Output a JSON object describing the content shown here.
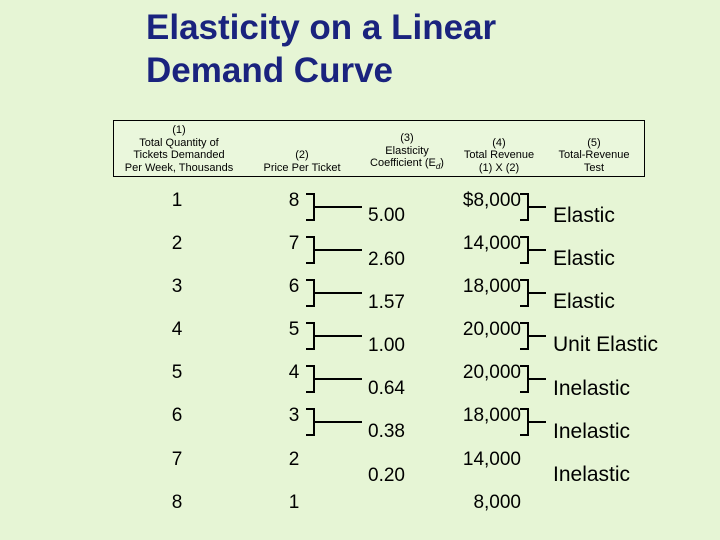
{
  "title": {
    "line1": "Elasticity on a Linear",
    "line2": "Demand Curve"
  },
  "headers": {
    "col1": [
      "(1)",
      "Total Quantity of",
      "Tickets Demanded",
      "Per Week, Thousands"
    ],
    "col2": [
      "(2)",
      "Price Per Ticket"
    ],
    "col3_num": "(3)",
    "col3_l1": "Elasticity",
    "col3_l2_prefix": "Coefficient (E",
    "col3_sub": "d",
    "col3_suffix": ")",
    "col4": [
      "(4)",
      "Total Revenue",
      "(1) X (2)"
    ],
    "col5": [
      "(5)",
      "Total-Revenue",
      "Test"
    ]
  },
  "quantity": [
    "1",
    "2",
    "3",
    "4",
    "5",
    "6",
    "7",
    "8"
  ],
  "price": [
    "8",
    "7",
    "6",
    "5",
    "4",
    "3",
    "2",
    "1"
  ],
  "elasticity_coefficient": [
    "5.00",
    "2.60",
    "1.57",
    "1.00",
    "0.64",
    "0.38",
    "0.20"
  ],
  "total_revenue": [
    "$8,000",
    "14,000",
    "18,000",
    "20,000",
    "20,000",
    "18,000",
    "14,000",
    "8,000"
  ],
  "total_revenue_test": [
    "Elastic",
    "Elastic",
    "Elastic",
    "Unit Elastic",
    "Inelastic",
    "Inelastic",
    "Inelastic"
  ]
}
